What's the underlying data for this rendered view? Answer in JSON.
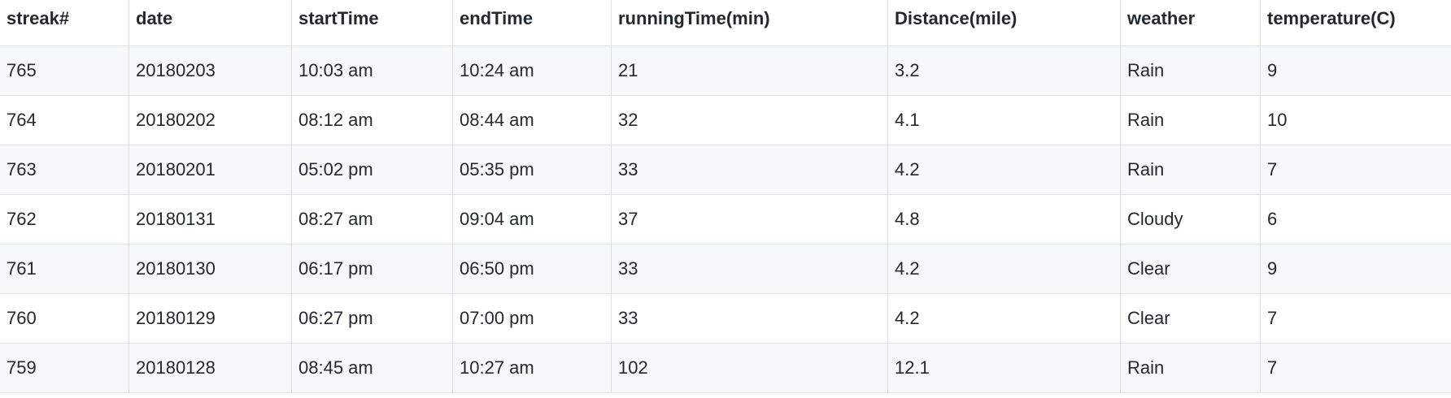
{
  "table": {
    "headers": [
      "streak#",
      "date",
      "startTime",
      "endTime",
      "runningTime(min)",
      "Distance(mile)",
      "weather",
      "temperature(C)"
    ],
    "rows": [
      [
        "765",
        "20180203",
        "10:03 am",
        "10:24 am",
        "21",
        "3.2",
        "Rain",
        "9"
      ],
      [
        "764",
        "20180202",
        "08:12 am",
        "08:44 am",
        "32",
        "4.1",
        "Rain",
        "10"
      ],
      [
        "763",
        "20180201",
        "05:02 pm",
        "05:35 pm",
        "33",
        "4.2",
        "Rain",
        "7"
      ],
      [
        "762",
        "20180131",
        "08:27 am",
        "09:04 am",
        "37",
        "4.8",
        "Cloudy",
        "6"
      ],
      [
        "761",
        "20180130",
        "06:17 pm",
        "06:50 pm",
        "33",
        "4.2",
        "Clear",
        "9"
      ],
      [
        "760",
        "20180129",
        "06:27 pm",
        "07:00 pm",
        "33",
        "4.2",
        "Clear",
        "7"
      ],
      [
        "759",
        "20180128",
        "08:45 am",
        "10:27 am",
        "102",
        "12.1",
        "Rain",
        "7"
      ]
    ]
  }
}
